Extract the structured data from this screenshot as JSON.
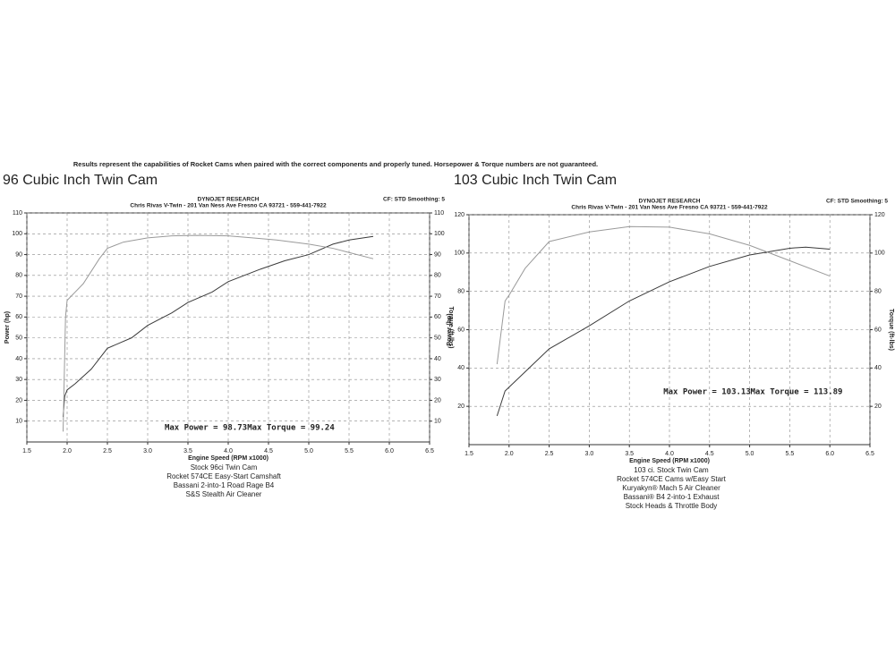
{
  "disclaimer": "Results represent the capabilities of Rocket Cams when paired with the correct components and properly tuned. Horsepower & Torque numbers are not guaranteed.",
  "chart_data": [
    {
      "type": "line",
      "title": "96 Cubic Inch Twin Cam",
      "header": [
        "DYNOJET RESEARCH",
        "Chris Rivas V-Twin - 201 Van Ness Ave Fresno CA 93721 - 559-441-7922"
      ],
      "settings_label": "CF: STD  Smoothing: 5",
      "ylabel": "Power (hp)",
      "y2label": "Torque (ft-lbs)",
      "xlabel": "Engine Speed (RPM x1000)",
      "annotations": [
        "Max Power = 98.73",
        "Max Torque = 99.24"
      ],
      "notes": [
        "Stock 96ci Twin Cam",
        "Rocket 574CE Easy-Start Camshaft",
        "Bassani 2-into-1 Road Rage B4",
        "S&S Stealth Air Cleaner"
      ],
      "xlim": [
        1.5,
        6.5
      ],
      "xticks": [
        1.5,
        {
          "value": 2,
          "label": "2.0"
        },
        2.5,
        {
          "value": 3,
          "label": "3.0"
        },
        3.5,
        {
          "value": 4,
          "label": "4.0"
        },
        4.5,
        {
          "value": 5,
          "label": "5.0"
        },
        5.5,
        {
          "value": 6,
          "label": "6.0"
        },
        6.5
      ],
      "ylim": [
        0,
        110
      ],
      "yticks": [
        10,
        20,
        30,
        40,
        50,
        60,
        70,
        80,
        90,
        100,
        110
      ],
      "y2lim": [
        0,
        110
      ],
      "y2ticks": [
        10,
        20,
        30,
        40,
        50,
        60,
        70,
        80,
        90,
        100,
        110
      ],
      "grid": true,
      "series": [
        {
          "color": "#3a3a3a",
          "x": [
            1.95,
            1.97,
            2.0,
            2.1,
            2.3,
            2.5,
            2.8,
            3.0,
            3.3,
            3.5,
            3.8,
            4.0,
            4.4,
            4.7,
            5.0,
            5.3,
            5.5,
            5.8
          ],
          "values": [
            12,
            22,
            25,
            28,
            35,
            45,
            50,
            56,
            62,
            67,
            72,
            77,
            83,
            87,
            90,
            95,
            97,
            98.7
          ]
        },
        {
          "color": "#9a9a9a",
          "axis": "y2",
          "x": [
            1.95,
            1.98,
            2.0,
            2.1,
            2.2,
            2.4,
            2.5,
            2.7,
            3.0,
            3.3,
            3.6,
            4.0,
            4.3,
            4.6,
            5.0,
            5.3,
            5.5,
            5.8
          ],
          "values": [
            5,
            60,
            68,
            72,
            76,
            88,
            93,
            96,
            98,
            99,
            99.2,
            99,
            98,
            97,
            95,
            93,
            91,
            88
          ]
        }
      ]
    },
    {
      "type": "line",
      "title": "103 Cubic Inch Twin Cam",
      "header": [
        "DYNOJET RESEARCH",
        "Chris Rivas V-Twin - 201 Van Ness Ave Fresno CA 93721 - 559-441-7922"
      ],
      "settings_label": "CF: STD  Smoothing: 5",
      "ylabel": "Power (hp)",
      "y2label": "Torque (ft-lbs)",
      "xlabel": "Engine Speed (RPM x1000)",
      "annotations": [
        "Max Power = 103.13",
        "Max Torque = 113.89"
      ],
      "notes": [
        "103 ci. Stock Twin Cam",
        "Rocket 574CE Cams w/Easy Start",
        "Kuryakyn® Mach 5 Air Cleaner",
        "Bassani® B4 2-into-1 Exhaust",
        "Stock Heads & Throttle Body"
      ],
      "xlim": [
        1.5,
        6.5
      ],
      "xticks": [
        1.5,
        {
          "value": 2,
          "label": "2.0"
        },
        2.5,
        {
          "value": 3,
          "label": "3.0"
        },
        3.5,
        {
          "value": 4,
          "label": "4.0"
        },
        4.5,
        {
          "value": 5,
          "label": "5.0"
        },
        5.5,
        {
          "value": 6,
          "label": "6.0"
        },
        6.5
      ],
      "ylim": [
        0,
        120
      ],
      "yticks": [
        20,
        40,
        60,
        80,
        100,
        120
      ],
      "y2lim": [
        0,
        120
      ],
      "y2ticks": [
        20,
        40,
        60,
        80,
        100,
        120
      ],
      "grid": true,
      "series": [
        {
          "color": "#3a3a3a",
          "x": [
            1.85,
            1.95,
            2.0,
            2.2,
            2.5,
            3.0,
            3.5,
            4.0,
            4.5,
            5.0,
            5.5,
            5.7,
            6.0
          ],
          "values": [
            15,
            28,
            30,
            38,
            50,
            62,
            75,
            85,
            93,
            99,
            102.5,
            103.1,
            102
          ]
        },
        {
          "color": "#9a9a9a",
          "axis": "y2",
          "x": [
            1.85,
            1.95,
            2.0,
            2.2,
            2.5,
            3.0,
            3.5,
            4.0,
            4.5,
            5.0,
            5.5,
            6.0
          ],
          "values": [
            42,
            75,
            78,
            92,
            106,
            111,
            113.8,
            113.5,
            110,
            104,
            96,
            88
          ]
        }
      ]
    }
  ]
}
